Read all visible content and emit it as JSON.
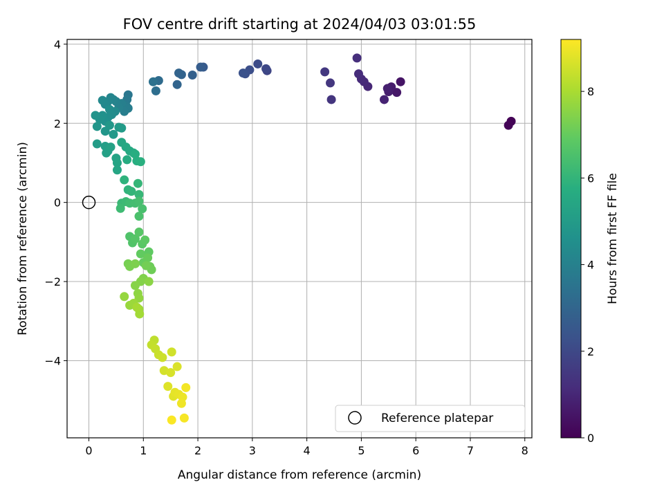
{
  "chart_data": {
    "type": "scatter",
    "title": "FOV centre drift starting at 2024/04/03 03:01:55",
    "xlabel": "Angular distance from reference (arcmin)",
    "ylabel": "Rotation from reference (arcmin)",
    "xlim": [
      -0.4,
      8.13
    ],
    "ylim": [
      -5.95,
      4.12
    ],
    "xticks": [
      "0",
      "1",
      "2",
      "3",
      "4",
      "5",
      "6",
      "7",
      "8"
    ],
    "yticks": [
      "−4",
      "−2",
      "0",
      "2",
      "4"
    ],
    "grid": true,
    "colormap": "viridis",
    "colorbar": {
      "label": "Hours from first FF file",
      "range": [
        0,
        9.2
      ],
      "ticks": [
        "0",
        "2",
        "4",
        "6",
        "8"
      ]
    },
    "legend": {
      "position": "lower-right",
      "entries": [
        "Reference platepar"
      ]
    },
    "reference_point": {
      "x": 0,
      "y": 0
    },
    "points": [
      [
        7.75,
        2.05,
        0.05
      ],
      [
        7.7,
        1.95,
        0.1
      ],
      [
        5.72,
        3.05,
        0.5
      ],
      [
        5.65,
        2.78,
        0.6
      ],
      [
        5.55,
        2.92,
        0.7
      ],
      [
        5.5,
        2.8,
        0.75
      ],
      [
        5.48,
        2.88,
        0.8
      ],
      [
        5.42,
        2.6,
        0.9
      ],
      [
        5.12,
        2.93,
        1.0
      ],
      [
        5.05,
        3.05,
        1.05
      ],
      [
        5.0,
        3.12,
        1.1
      ],
      [
        4.95,
        3.25,
        1.15
      ],
      [
        4.92,
        3.65,
        1.2
      ],
      [
        4.45,
        2.6,
        1.4
      ],
      [
        4.43,
        3.02,
        1.45
      ],
      [
        4.33,
        3.3,
        1.5
      ],
      [
        3.27,
        3.33,
        1.9
      ],
      [
        3.25,
        3.38,
        2.0
      ],
      [
        3.1,
        3.5,
        2.1
      ],
      [
        2.95,
        3.35,
        2.2
      ],
      [
        2.87,
        3.25,
        2.25
      ],
      [
        2.83,
        3.27,
        2.3
      ],
      [
        2.1,
        3.42,
        2.6
      ],
      [
        2.05,
        3.42,
        2.7
      ],
      [
        1.9,
        3.22,
        2.8
      ],
      [
        1.7,
        3.23,
        2.9
      ],
      [
        1.65,
        3.27,
        2.95
      ],
      [
        1.62,
        2.98,
        3.0
      ],
      [
        1.28,
        3.08,
        3.2
      ],
      [
        1.23,
        2.82,
        3.3
      ],
      [
        1.18,
        3.05,
        3.4
      ],
      [
        0.72,
        2.72,
        3.6
      ],
      [
        0.7,
        2.6,
        3.7
      ],
      [
        0.68,
        2.45,
        3.8
      ],
      [
        0.72,
        2.38,
        3.85
      ],
      [
        0.65,
        2.3,
        3.9
      ],
      [
        0.6,
        2.5,
        3.95
      ],
      [
        0.55,
        2.4,
        4.0
      ],
      [
        0.5,
        2.55,
        4.05
      ],
      [
        0.45,
        2.6,
        4.1
      ],
      [
        0.4,
        2.65,
        4.15
      ],
      [
        0.35,
        2.55,
        4.2
      ],
      [
        0.3,
        2.48,
        4.25
      ],
      [
        0.25,
        2.58,
        4.3
      ],
      [
        0.48,
        2.3,
        4.35
      ],
      [
        0.42,
        2.22,
        4.4
      ],
      [
        0.38,
        2.35,
        4.45
      ],
      [
        0.35,
        2.15,
        4.5
      ],
      [
        0.3,
        2.05,
        4.55
      ],
      [
        0.25,
        2.2,
        4.6
      ],
      [
        0.2,
        2.1,
        4.65
      ],
      [
        0.12,
        2.2,
        4.7
      ],
      [
        0.15,
        1.92,
        4.75
      ],
      [
        0.3,
        1.8,
        4.8
      ],
      [
        0.38,
        1.95,
        4.85
      ],
      [
        0.45,
        1.72,
        4.9
      ],
      [
        0.55,
        1.9,
        4.95
      ],
      [
        0.6,
        1.88,
        5.0
      ],
      [
        0.15,
        1.48,
        5.05
      ],
      [
        0.3,
        1.42,
        5.1
      ],
      [
        0.35,
        1.3,
        5.15
      ],
      [
        0.32,
        1.25,
        5.2
      ],
      [
        0.4,
        1.4,
        5.25
      ],
      [
        0.5,
        1.12,
        5.3
      ],
      [
        0.52,
        1.0,
        5.35
      ],
      [
        0.52,
        0.82,
        5.4
      ],
      [
        0.6,
        1.52,
        5.45
      ],
      [
        0.68,
        1.4,
        5.5
      ],
      [
        0.75,
        1.3,
        5.55
      ],
      [
        0.82,
        1.25,
        5.6
      ],
      [
        0.7,
        1.08,
        5.65
      ],
      [
        0.85,
        1.22,
        5.7
      ],
      [
        0.88,
        1.05,
        5.75
      ],
      [
        0.95,
        1.03,
        5.8
      ],
      [
        0.65,
        0.57,
        5.9
      ],
      [
        0.72,
        0.32,
        5.95
      ],
      [
        0.78,
        0.28,
        6.0
      ],
      [
        0.9,
        0.48,
        6.05
      ],
      [
        0.92,
        0.2,
        6.1
      ],
      [
        0.6,
        -0.02,
        6.15
      ],
      [
        0.68,
        0.02,
        6.2
      ],
      [
        0.58,
        -0.15,
        6.25
      ],
      [
        0.75,
        -0.02,
        6.3
      ],
      [
        0.85,
        -0.02,
        6.35
      ],
      [
        0.92,
        0.03,
        6.4
      ],
      [
        0.98,
        -0.16,
        6.45
      ],
      [
        0.92,
        -0.35,
        6.5
      ],
      [
        0.75,
        -0.86,
        6.6
      ],
      [
        0.8,
        -1.02,
        6.65
      ],
      [
        0.85,
        -0.92,
        6.7
      ],
      [
        0.92,
        -0.75,
        6.75
      ],
      [
        0.98,
        -1.05,
        6.8
      ],
      [
        1.03,
        -0.95,
        6.85
      ],
      [
        1.1,
        -1.25,
        6.9
      ],
      [
        0.95,
        -1.3,
        6.95
      ],
      [
        1.0,
        -1.52,
        7.0
      ],
      [
        1.08,
        -1.4,
        7.05
      ],
      [
        1.12,
        -1.62,
        7.1
      ],
      [
        1.15,
        -1.7,
        7.15
      ],
      [
        1.05,
        -1.6,
        7.2
      ],
      [
        0.72,
        -1.55,
        7.25
      ],
      [
        0.75,
        -1.62,
        7.3
      ],
      [
        0.85,
        -1.55,
        7.35
      ],
      [
        1.0,
        -1.92,
        7.4
      ],
      [
        0.95,
        -2.0,
        7.45
      ],
      [
        0.85,
        -2.1,
        7.5
      ],
      [
        1.1,
        -2.0,
        7.55
      ],
      [
        0.9,
        -2.3,
        7.6
      ],
      [
        0.92,
        -2.42,
        7.65
      ],
      [
        0.65,
        -2.38,
        7.7
      ],
      [
        0.75,
        -2.6,
        7.75
      ],
      [
        0.82,
        -2.55,
        7.8
      ],
      [
        0.92,
        -2.7,
        7.85
      ],
      [
        0.93,
        -2.82,
        7.9
      ],
      [
        0.88,
        -2.65,
        7.95
      ],
      [
        1.2,
        -3.48,
        8.3
      ],
      [
        1.15,
        -3.6,
        8.35
      ],
      [
        1.22,
        -3.7,
        8.4
      ],
      [
        1.28,
        -3.85,
        8.45
      ],
      [
        1.35,
        -3.92,
        8.5
      ],
      [
        1.52,
        -3.78,
        8.55
      ],
      [
        1.38,
        -4.25,
        8.6
      ],
      [
        1.5,
        -4.3,
        8.65
      ],
      [
        1.62,
        -4.15,
        8.7
      ],
      [
        1.45,
        -4.65,
        8.75
      ],
      [
        1.55,
        -4.9,
        8.8
      ],
      [
        1.58,
        -4.8,
        8.85
      ],
      [
        1.65,
        -4.85,
        8.9
      ],
      [
        1.72,
        -4.92,
        8.95
      ],
      [
        1.7,
        -5.08,
        9.0
      ],
      [
        1.78,
        -4.68,
        9.05
      ],
      [
        1.75,
        -5.45,
        9.1
      ],
      [
        1.52,
        -5.5,
        9.15
      ]
    ]
  }
}
